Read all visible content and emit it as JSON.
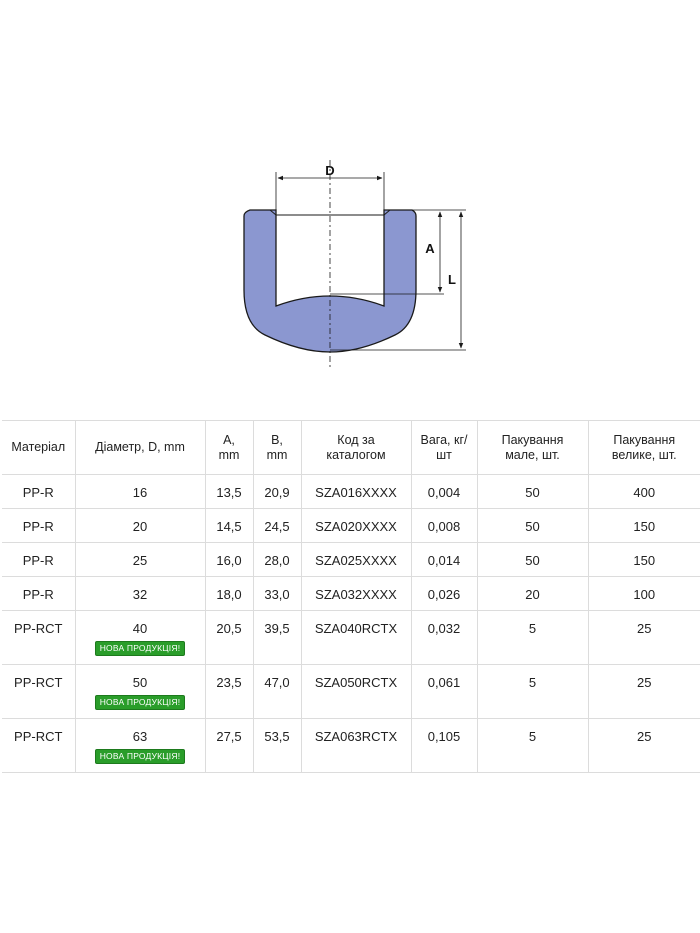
{
  "diagram": {
    "label_d": "D",
    "label_a": "A",
    "label_l": "L",
    "fill_color": "#8b97d0",
    "stroke_color": "#1a1a1a"
  },
  "table": {
    "headers": {
      "material": "Матеріал",
      "diameter": "Діаметр, D, mm",
      "a_top": "A,",
      "a_bottom": "mm",
      "b_top": "B,",
      "b_bottom": "mm",
      "code_top": "Код за",
      "code_bottom": "каталогом",
      "weight_top": "Вага, кг/",
      "weight_bottom": "шт",
      "pack_small_top": "Пакування",
      "pack_small_bottom": "мале, шт.",
      "pack_large_top": "Пакування",
      "pack_large_bottom": "велике, шт."
    },
    "badge_text": "НОВА ПРОДУКЦІЯ!",
    "badge_color": "#2a9d2a",
    "rows": [
      {
        "material": "PP-R",
        "diameter": "16",
        "a": "13,5",
        "b": "20,9",
        "code": "SZA016XXXX",
        "weight": "0,004",
        "pack_small": "50",
        "pack_large": "400"
      },
      {
        "material": "PP-R",
        "diameter": "20",
        "a": "14,5",
        "b": "24,5",
        "code": "SZA020XXXX",
        "weight": "0,008",
        "pack_small": "50",
        "pack_large": "150"
      },
      {
        "material": "PP-R",
        "diameter": "25",
        "a": "16,0",
        "b": "28,0",
        "code": "SZA025XXXX",
        "weight": "0,014",
        "pack_small": "50",
        "pack_large": "150"
      },
      {
        "material": "PP-R",
        "diameter": "32",
        "a": "18,0",
        "b": "33,0",
        "code": "SZA032XXXX",
        "weight": "0,026",
        "pack_small": "20",
        "pack_large": "100"
      },
      {
        "material": "PP-RCT",
        "diameter": "40",
        "a": "20,5",
        "b": "39,5",
        "code": "SZA040RCTX",
        "weight": "0,032",
        "pack_small": "5",
        "pack_large": "25"
      },
      {
        "material": "PP-RCT",
        "diameter": "50",
        "a": "23,5",
        "b": "47,0",
        "code": "SZA050RCTX",
        "weight": "0,061",
        "pack_small": "5",
        "pack_large": "25"
      },
      {
        "material": "PP-RCT",
        "diameter": "63",
        "a": "27,5",
        "b": "53,5",
        "code": "SZA063RCTX",
        "weight": "0,105",
        "pack_small": "5",
        "pack_large": "25"
      }
    ]
  }
}
